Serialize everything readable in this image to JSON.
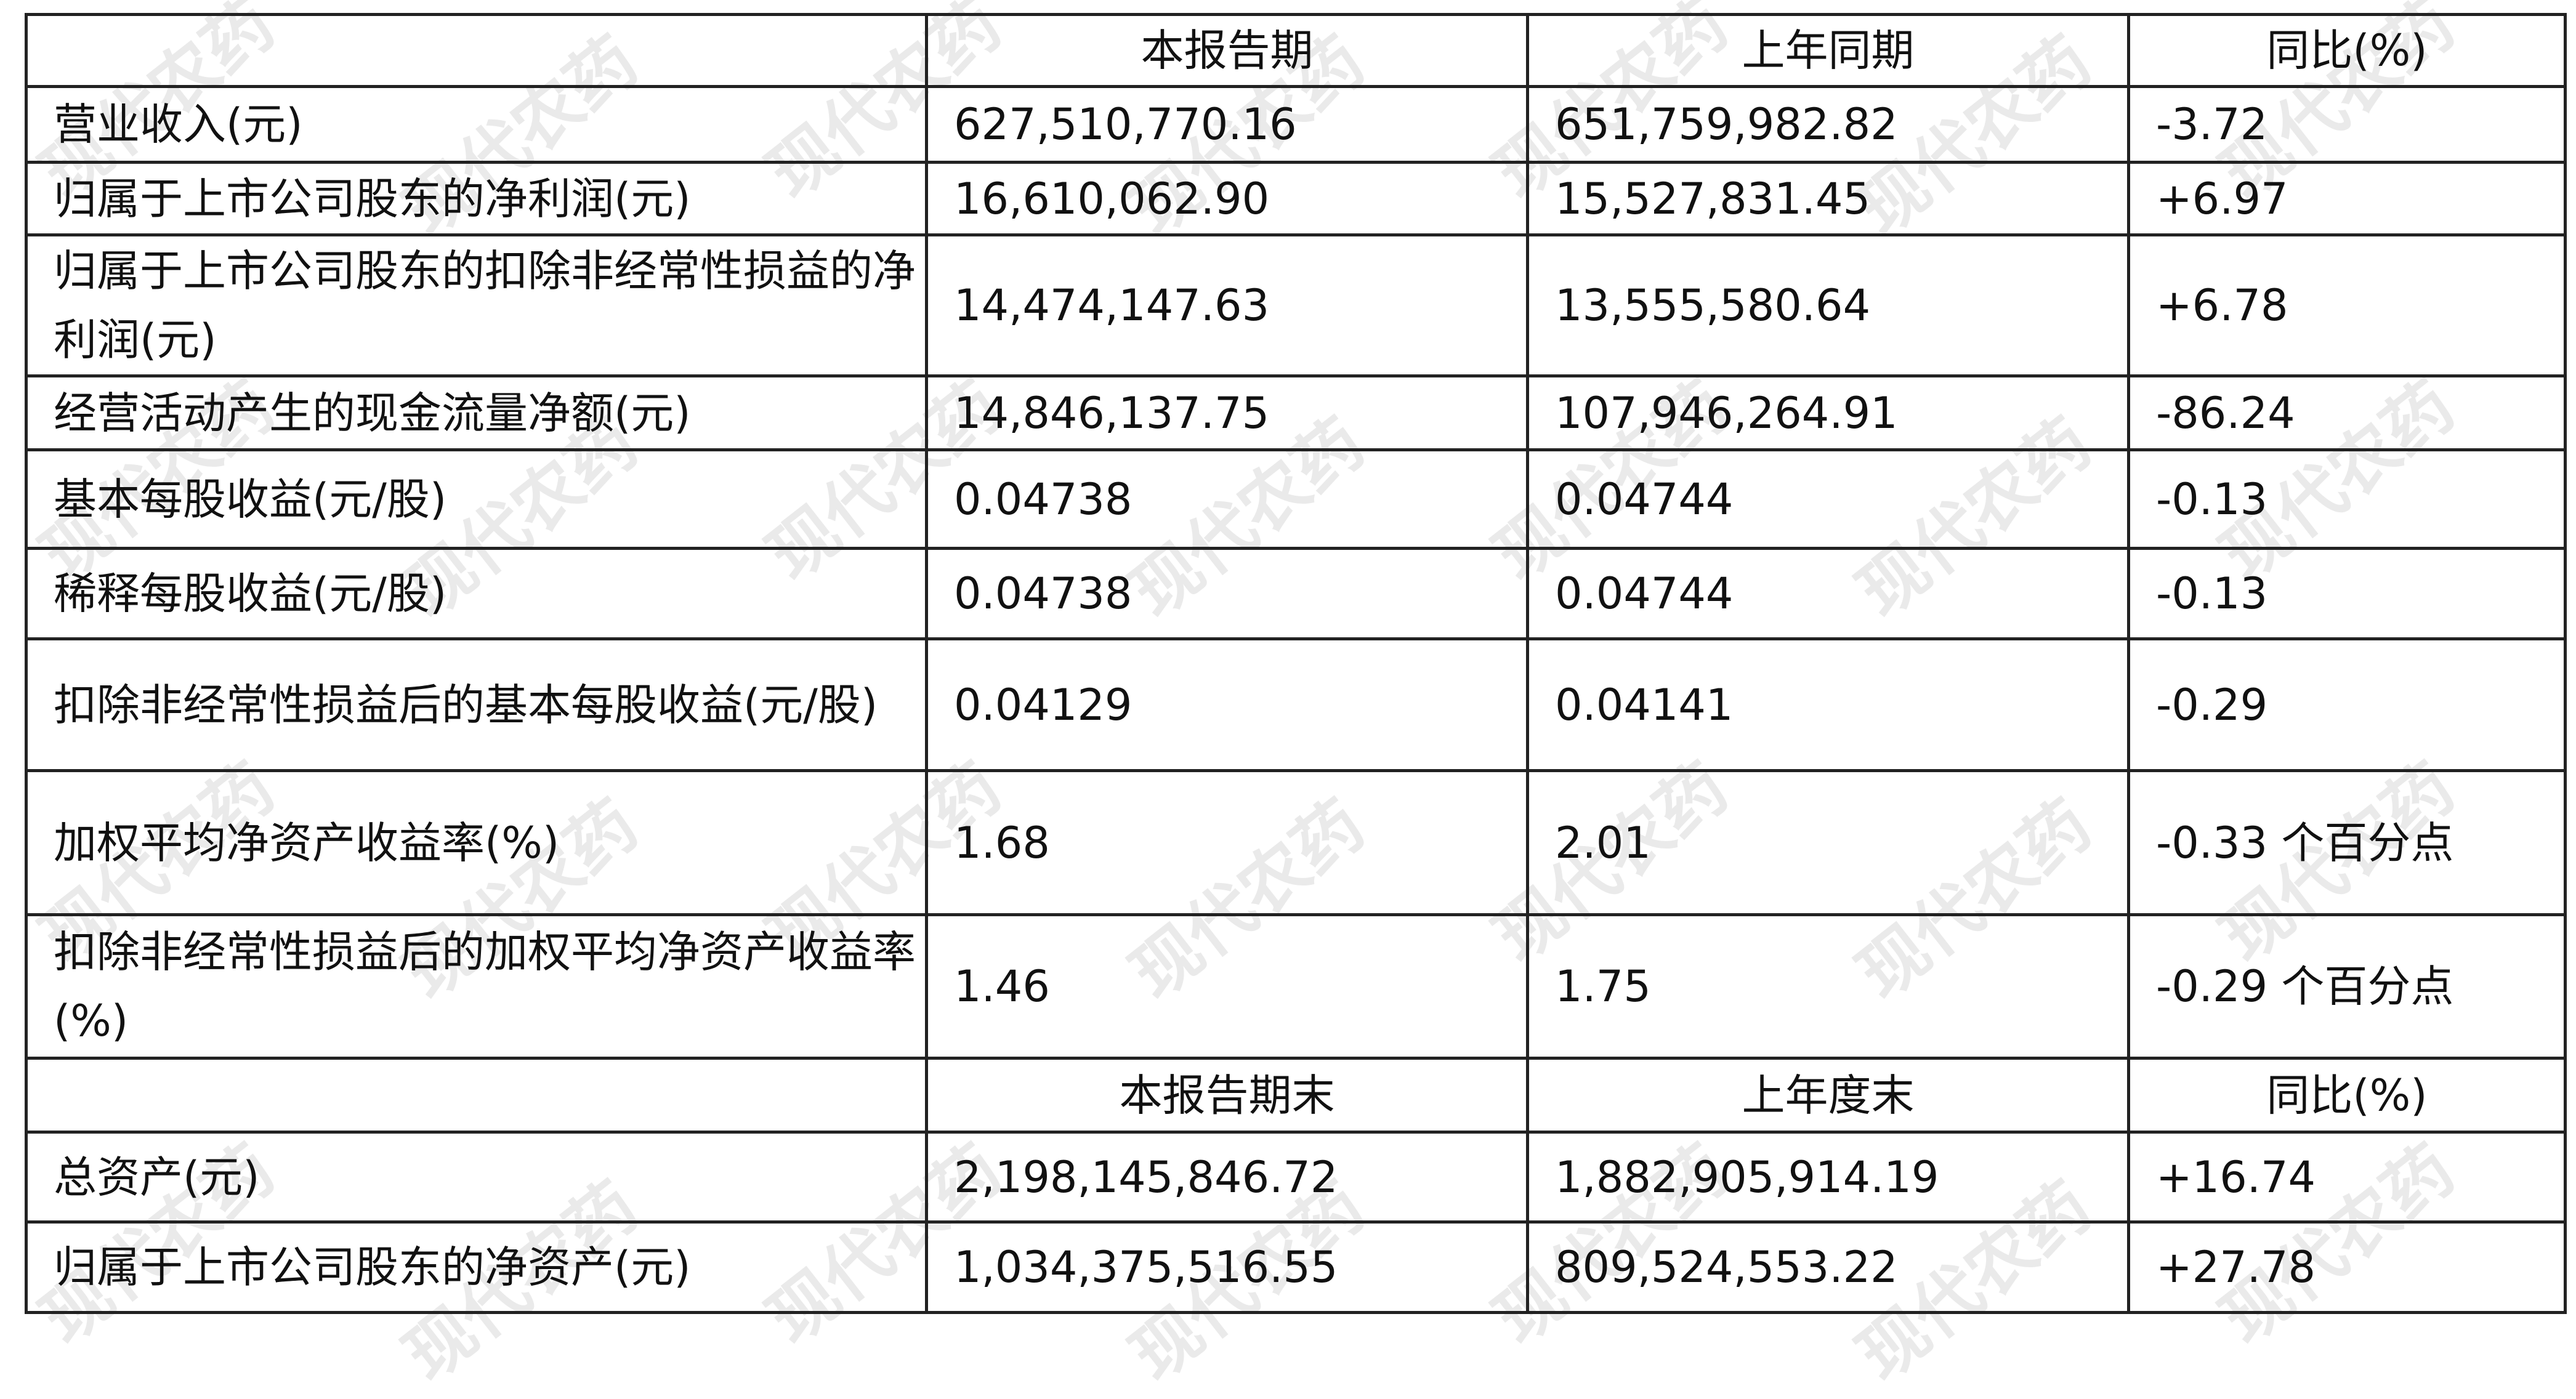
{
  "watermark": "现代农药",
  "header1": [
    "",
    "本报告期",
    "上年同期",
    "同比(%)"
  ],
  "rows1": [
    [
      "营业收入(元)",
      "627,510,770.16",
      "651,759,982.82",
      "-3.72"
    ],
    [
      "归属于上市公司股东的净利润(元)",
      "16,610,062.90",
      "15,527,831.45",
      "+6.97"
    ],
    [
      "归属于上市公司股东的扣除非经常性损益的净利润(元)",
      "14,474,147.63",
      "13,555,580.64",
      "+6.78"
    ],
    [
      "经营活动产生的现金流量净额(元)",
      "14,846,137.75",
      "107,946,264.91",
      "-86.24"
    ],
    [
      "基本每股收益(元/股)",
      "0.04738",
      "0.04744",
      "-0.13"
    ],
    [
      "稀释每股收益(元/股)",
      "0.04738",
      "0.04744",
      "-0.13"
    ],
    [
      "扣除非经常性损益后的基本每股收益(元/股)",
      "0.04129",
      "0.04141",
      "-0.29"
    ],
    [
      "加权平均净资产收益率(%)",
      "1.68",
      "2.01",
      "-0.33 个百分点"
    ],
    [
      "扣除非经常性损益后的加权平均净资产收益率(%)",
      "1.46",
      "1.75",
      "-0.29 个百分点"
    ]
  ],
  "header2": [
    "",
    "本报告期末",
    "上年度末",
    "同比(%)"
  ],
  "rows2": [
    [
      "总资产(元)",
      "2,198,145,846.72",
      "1,882,905,914.19",
      "+16.74"
    ],
    [
      "归属于上市公司股东的净资产(元)",
      "1,034,375,516.55",
      "809,524,553.22",
      "+27.78"
    ]
  ]
}
